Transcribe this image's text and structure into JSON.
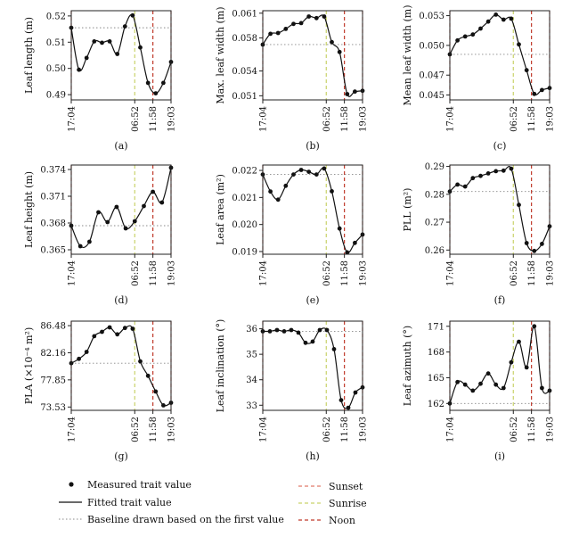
{
  "chart_data": [
    {
      "type": "line",
      "title": "",
      "subcaption": "(a)",
      "ylabel": "Leaf length (m)",
      "ylim": [
        0.488,
        0.522
      ],
      "yticks": [
        "0.49",
        "0.50",
        "0.51",
        "0.52"
      ],
      "ytick_values": [
        0.49,
        0.5,
        0.51,
        0.52
      ],
      "x_tick_labels": [
        "17:04",
        "06:52",
        "11:58",
        "19:03"
      ],
      "x_tick_index": [
        0,
        14,
        18,
        22
      ],
      "markers": {
        "sunset": [
          0,
          22
        ],
        "sunrise": [
          14
        ],
        "noon": [
          18
        ]
      },
      "baseline": 0.5155,
      "values": [
        0.5155,
        0.4995,
        0.504,
        0.5103,
        0.5098,
        0.5103,
        0.5055,
        0.516,
        0.5202,
        0.508,
        0.4945,
        0.4905,
        0.4945,
        0.5025
      ]
    },
    {
      "type": "line",
      "title": "",
      "subcaption": "(b)",
      "ylabel": "Max. leaf width (m)",
      "ylim": [
        0.0505,
        0.0613
      ],
      "yticks": [
        "0.051",
        "0.054",
        "0.058",
        "0.061"
      ],
      "ytick_values": [
        0.051,
        0.054,
        0.058,
        0.061
      ],
      "x_tick_labels": [
        "17:04",
        "06:52",
        "11:58",
        "19:03"
      ],
      "x_tick_index": [
        0,
        14,
        18,
        22
      ],
      "markers": {
        "sunset": [
          0,
          22
        ],
        "sunrise": [
          14
        ],
        "noon": [
          18
        ]
      },
      "baseline": 0.0572,
      "values": [
        0.0572,
        0.0585,
        0.0586,
        0.0591,
        0.0597,
        0.0598,
        0.0606,
        0.0604,
        0.0606,
        0.0575,
        0.0563,
        0.0512,
        0.0515,
        0.0516
      ]
    },
    {
      "type": "line",
      "title": "",
      "subcaption": "(c)",
      "ylabel": "Mean leaf width (m)",
      "ylim": [
        0.0445,
        0.0535
      ],
      "yticks": [
        "0.045",
        "0.047",
        "0.050",
        "0.053"
      ],
      "ytick_values": [
        0.045,
        0.047,
        0.05,
        0.053
      ],
      "x_tick_labels": [
        "17:04",
        "06:52",
        "11:58",
        "19:03"
      ],
      "x_tick_index": [
        0,
        14,
        18,
        22
      ],
      "markers": {
        "sunset": [
          0,
          22
        ],
        "sunrise": [
          14
        ],
        "noon": [
          18
        ]
      },
      "baseline": 0.0491,
      "values": [
        0.0491,
        0.0505,
        0.0509,
        0.0511,
        0.0517,
        0.0524,
        0.0531,
        0.0526,
        0.0527,
        0.0501,
        0.0475,
        0.0451,
        0.0455,
        0.0457
      ]
    },
    {
      "type": "line",
      "title": "",
      "subcaption": "(d)",
      "ylabel": "Leaf height (m)",
      "ylim": [
        0.3645,
        0.3745
      ],
      "yticks": [
        "0.365",
        "0.368",
        "0.371",
        "0.374"
      ],
      "ytick_values": [
        0.365,
        0.368,
        0.371,
        0.374
      ],
      "x_tick_labels": [
        "17:04",
        "06:52",
        "11:58",
        "19:03"
      ],
      "x_tick_index": [
        0,
        14,
        18,
        22
      ],
      "markers": {
        "sunset": [
          0,
          22
        ],
        "sunrise": [
          14
        ],
        "noon": [
          18
        ]
      },
      "baseline": 0.3677,
      "values": [
        0.3677,
        0.3654,
        0.3659,
        0.3692,
        0.3681,
        0.3698,
        0.3674,
        0.3682,
        0.3699,
        0.3715,
        0.3703,
        0.3742
      ]
    },
    {
      "type": "line",
      "title": "",
      "subcaption": "(e)",
      "ylabel": "Leaf area (m²)",
      "ylim": [
        0.0189,
        0.0222
      ],
      "yticks": [
        "0.019",
        "0.020",
        "0.021",
        "0.022"
      ],
      "ytick_values": [
        0.019,
        0.02,
        0.021,
        0.022
      ],
      "x_tick_labels": [
        "17:04",
        "06:52",
        "11:58",
        "19:03"
      ],
      "x_tick_index": [
        0,
        14,
        18,
        22
      ],
      "markers": {
        "sunset": [
          0,
          22
        ],
        "sunrise": [
          14
        ],
        "noon": [
          18
        ]
      },
      "baseline": 0.02185,
      "values": [
        0.02185,
        0.02122,
        0.02092,
        0.02143,
        0.02185,
        0.02202,
        0.02195,
        0.02185,
        0.02207,
        0.02123,
        0.01985,
        0.01897,
        0.01932,
        0.01963
      ]
    },
    {
      "type": "line",
      "title": "",
      "subcaption": "(f)",
      "ylabel": "PLL (m²)",
      "ylim": [
        0.2585,
        0.2905
      ],
      "yticks": [
        "0.26",
        "0.27",
        "0.28",
        "0.29"
      ],
      "ytick_values": [
        0.26,
        0.27,
        0.28,
        0.29
      ],
      "x_tick_labels": [
        "17:04",
        "06:52",
        "11:58",
        "19:03"
      ],
      "x_tick_index": [
        0,
        14,
        18,
        22
      ],
      "markers": {
        "sunset": [
          0,
          22
        ],
        "sunrise": [
          14
        ],
        "noon": [
          18
        ]
      },
      "baseline": 0.281,
      "values": [
        0.281,
        0.2835,
        0.2828,
        0.2858,
        0.2866,
        0.2875,
        0.2883,
        0.2885,
        0.2892,
        0.2762,
        0.2625,
        0.2597,
        0.2622,
        0.2685
      ]
    },
    {
      "type": "line",
      "title": "",
      "subcaption": "(g)",
      "ylabel": "PLA (×10⁻⁴ m²)",
      "ylim": [
        73.0,
        87.2
      ],
      "yticks": [
        "73.53",
        "77.85",
        "82.16",
        "86.48"
      ],
      "ytick_values": [
        73.53,
        77.85,
        82.16,
        86.48
      ],
      "x_tick_labels": [
        "17:04",
        "06:52",
        "11:58",
        "19:03"
      ],
      "x_tick_index": [
        0,
        14,
        18,
        22
      ],
      "markers": {
        "sunset": [
          0,
          22
        ],
        "sunrise": [
          14
        ],
        "noon": [
          18
        ]
      },
      "baseline": 80.5,
      "values": [
        80.5,
        81.2,
        82.3,
        84.8,
        85.5,
        86.2,
        85.1,
        86.1,
        86.0,
        80.8,
        78.5,
        76.0,
        73.8,
        74.2
      ]
    },
    {
      "type": "line",
      "title": "",
      "subcaption": "(h)",
      "ylabel": "Leaf inclination (°)",
      "ylim": [
        32.8,
        36.3
      ],
      "yticks": [
        "33",
        "34",
        "35",
        "36"
      ],
      "ytick_values": [
        33,
        34,
        35,
        36
      ],
      "x_tick_labels": [
        "17:04",
        "06:52",
        "11:58",
        "19:03"
      ],
      "x_tick_index": [
        0,
        14,
        18,
        22
      ],
      "markers": {
        "sunset": [
          0,
          22
        ],
        "sunrise": [
          14
        ],
        "noon": [
          18
        ]
      },
      "baseline": 35.9,
      "values": [
        35.9,
        35.9,
        35.95,
        35.9,
        35.95,
        35.85,
        35.45,
        35.5,
        35.95,
        35.95,
        35.2,
        33.2,
        32.9,
        33.5,
        33.7
      ]
    },
    {
      "type": "line",
      "title": "",
      "subcaption": "(i)",
      "ylabel": "Leaf azimuth (°)",
      "ylim": [
        161.2,
        171.6
      ],
      "yticks": [
        "162",
        "165",
        "168",
        "171"
      ],
      "ytick_values": [
        162,
        165,
        168,
        171
      ],
      "x_tick_labels": [
        "17:04",
        "06:52",
        "11:58",
        "19:03"
      ],
      "x_tick_index": [
        0,
        14,
        18,
        22
      ],
      "markers": {
        "sunset": [
          0,
          22
        ],
        "sunrise": [
          14
        ],
        "noon": [
          18
        ]
      },
      "baseline": 162.0,
      "values": [
        162.0,
        164.5,
        164.2,
        163.5,
        164.3,
        165.5,
        164.2,
        163.8,
        166.8,
        169.2,
        166.2,
        171.0,
        163.8,
        163.5
      ]
    }
  ],
  "legend": {
    "measured": "Measured trait value",
    "fitted": "Fitted trait value",
    "baseline": "Baseline drawn based on the first value",
    "sunset": "Sunset",
    "sunrise": "Sunrise",
    "noon": "Noon"
  },
  "colors": {
    "sunset": "#e07a6a",
    "sunrise": "#c9d36a",
    "noon": "#c0392b",
    "line": "#111111",
    "baseline": "#888888"
  }
}
